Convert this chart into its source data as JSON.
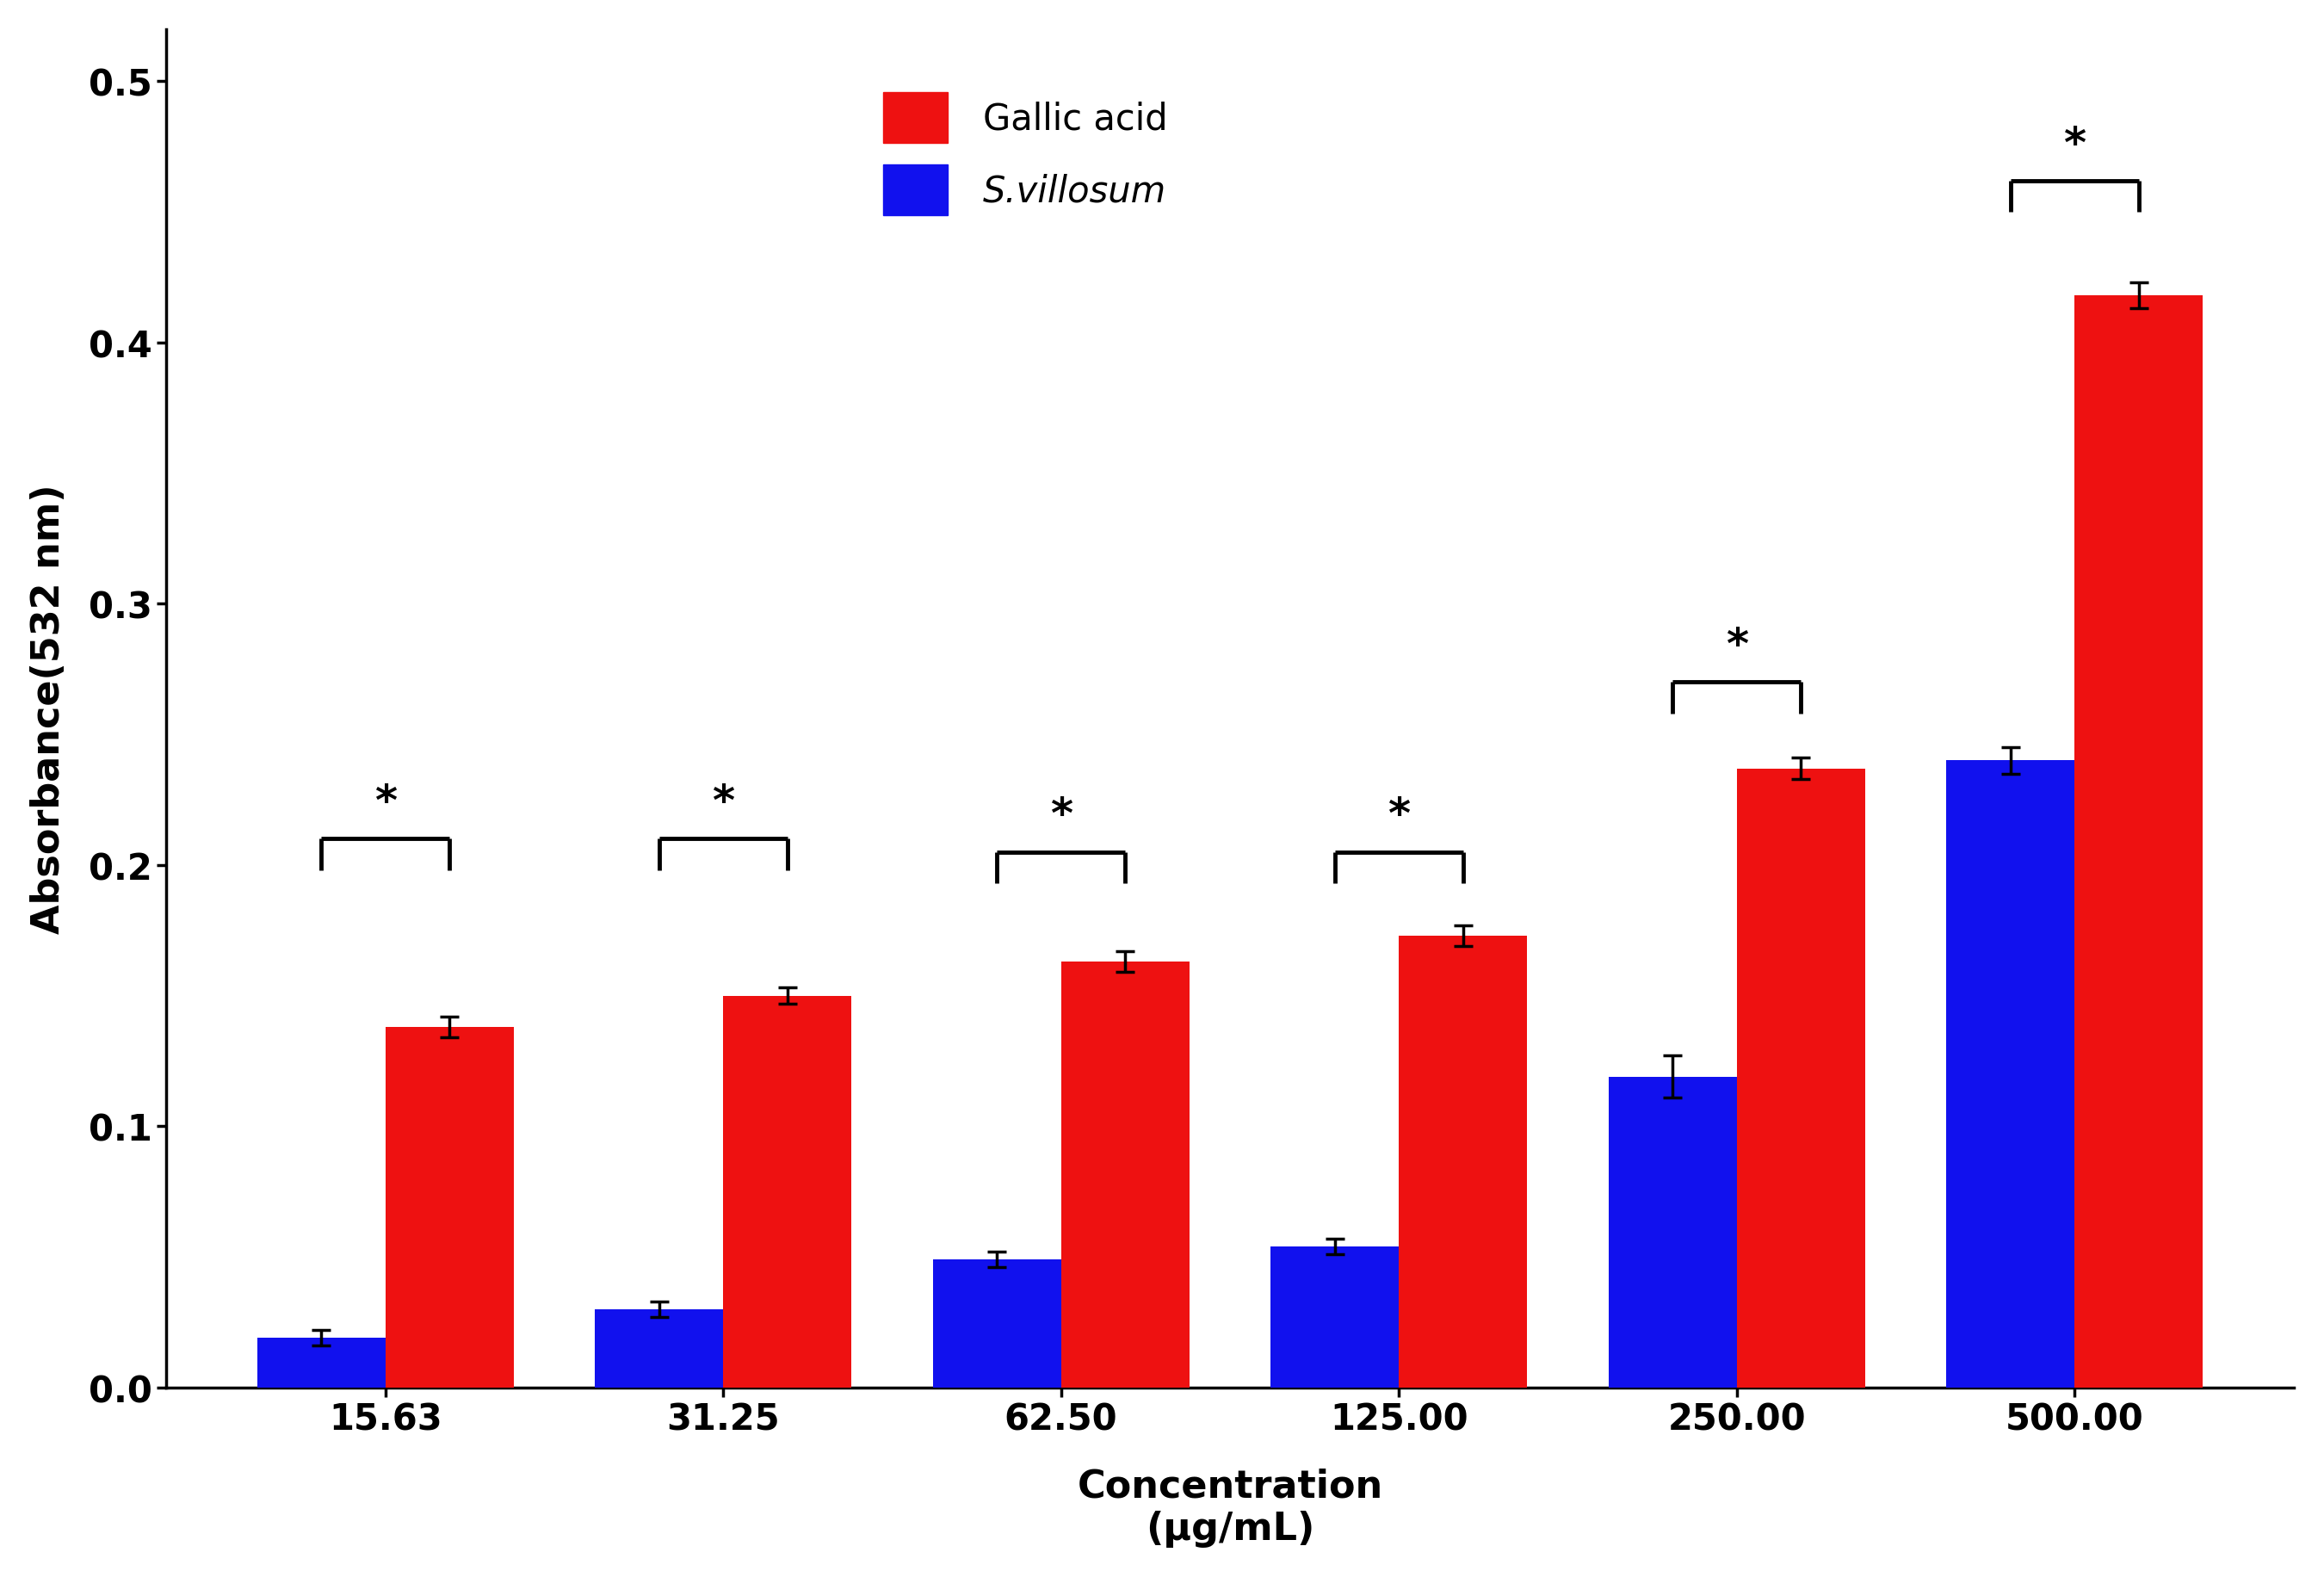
{
  "categories": [
    "15.63",
    "31.25",
    "62.50",
    "125.00",
    "250.00",
    "500.00"
  ],
  "gallic_acid_values": [
    0.138,
    0.15,
    0.163,
    0.173,
    0.237,
    0.418
  ],
  "gallic_acid_errors": [
    0.004,
    0.003,
    0.004,
    0.004,
    0.004,
    0.005
  ],
  "s_villosum_values": [
    0.019,
    0.03,
    0.049,
    0.054,
    0.119,
    0.24
  ],
  "s_villosum_errors": [
    0.003,
    0.003,
    0.003,
    0.003,
    0.008,
    0.005
  ],
  "gallic_acid_color": "#EE1111",
  "s_villosum_color": "#1111EE",
  "bar_width": 0.38,
  "ylabel": "Absorbance(532 nm)",
  "xlabel_line1": "Concentration",
  "xlabel_line2": "(μg/mL)",
  "ylim": [
    0,
    0.52
  ],
  "yticks": [
    0.0,
    0.1,
    0.2,
    0.3,
    0.4,
    0.5
  ],
  "legend_labels": [
    "Gallic acid",
    "S.villosum"
  ],
  "significance_brackets_y": [
    0.21,
    0.21,
    0.205,
    0.205,
    0.27,
    0.462
  ],
  "label_fontsize": 32,
  "tick_fontsize": 30,
  "legend_fontsize": 30,
  "star_fontsize": 36,
  "background_color": "#FFFFFF"
}
